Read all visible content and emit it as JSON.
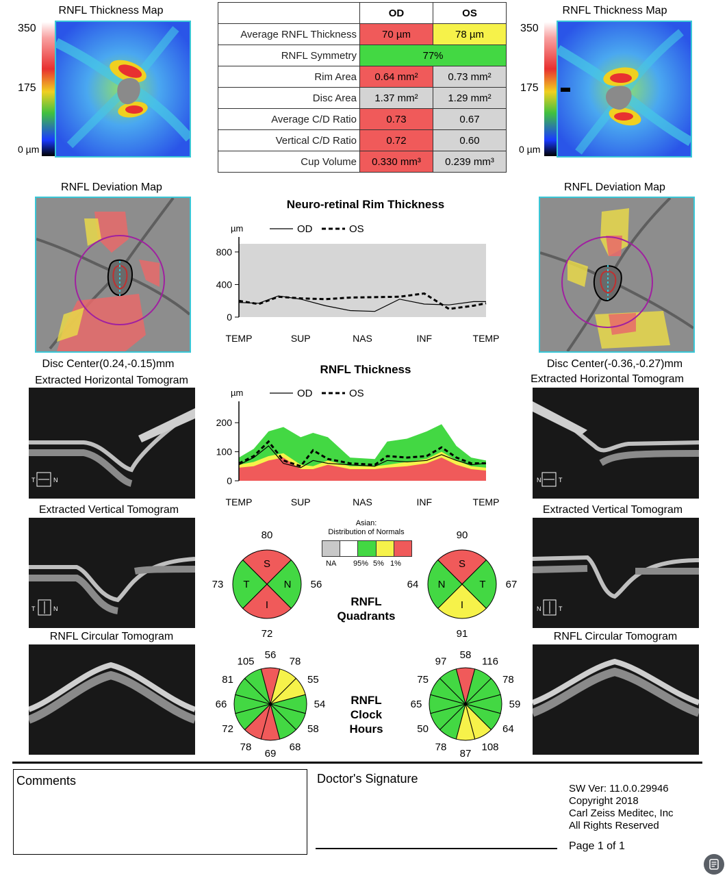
{
  "headers": {
    "thickness_map": "RNFL Thickness Map",
    "deviation_map": "RNFL Deviation Map",
    "horiz_tomo": "Extracted Horizontal Tomogram",
    "vert_tomo": "Extracted Vertical Tomogram",
    "circ_tomo": "RNFL Circular Tomogram"
  },
  "scale": {
    "top": "350",
    "mid": "175",
    "bottom": "0 µm"
  },
  "table": {
    "col_od": "OD",
    "col_os": "OS",
    "rows": [
      {
        "label": "Average RNFL Thickness",
        "od": "70 µm",
        "os": "78 µm"
      },
      {
        "label": "RNFL Symmetry",
        "both": "77%"
      },
      {
        "label": "Rim Area",
        "od": "0.64 mm²",
        "os": "0.73 mm²"
      },
      {
        "label": "Disc Area",
        "od": "1.37 mm²",
        "os": "1.29 mm²"
      },
      {
        "label": "Average C/D Ratio",
        "od": "0.73",
        "os": "0.67"
      },
      {
        "label": "Vertical C/D Ratio",
        "od": "0.72",
        "os": "0.60"
      },
      {
        "label": "Cup Volume",
        "od": "0.330 mm³",
        "os": "0.239 mm³"
      }
    ]
  },
  "disc_center": {
    "od": "Disc Center(0.24,-0.15)mm",
    "os": "Disc Center(-0.36,-0.27)mm"
  },
  "tomo_markers": {
    "t": "T",
    "n": "N"
  },
  "chart_data": [
    {
      "type": "line",
      "title": "Neuro-retinal Rim Thickness",
      "ylabel": "µm",
      "ylim": [
        0,
        900
      ],
      "yticks": [
        0,
        400,
        800
      ],
      "categories": [
        "TEMP",
        "SUP",
        "NAS",
        "INF",
        "TEMP"
      ],
      "series": [
        {
          "name": "OD",
          "style": "solid",
          "x": [
            0,
            8,
            16,
            25,
            35,
            45,
            55,
            65,
            75,
            85,
            95,
            100
          ],
          "values": [
            180,
            170,
            260,
            220,
            140,
            80,
            70,
            220,
            160,
            150,
            190,
            190
          ]
        },
        {
          "name": "OS",
          "style": "dashed",
          "x": [
            0,
            8,
            16,
            25,
            35,
            45,
            55,
            65,
            75,
            85,
            95,
            100
          ],
          "values": [
            200,
            160,
            250,
            230,
            220,
            240,
            245,
            250,
            290,
            100,
            140,
            170
          ]
        }
      ]
    },
    {
      "type": "area",
      "title": "RNFL Thickness",
      "ylabel": "µm",
      "ylim": [
        0,
        250
      ],
      "yticks": [
        0,
        100,
        200
      ],
      "categories": [
        "TEMP",
        "SUP",
        "NAS",
        "INF",
        "TEMP"
      ],
      "normal_bands": {
        "colors": [
          "#f05a5a",
          "#f6f24a",
          "#43d843"
        ],
        "x": [
          0,
          6,
          12,
          18,
          25,
          30,
          36,
          45,
          55,
          60,
          68,
          76,
          82,
          88,
          94,
          100
        ],
        "p1": [
          45,
          50,
          70,
          80,
          40,
          40,
          55,
          40,
          40,
          45,
          50,
          60,
          80,
          55,
          40,
          35
        ],
        "p5": [
          55,
          65,
          85,
          95,
          55,
          50,
          70,
          50,
          50,
          55,
          65,
          75,
          100,
          70,
          50,
          45
        ],
        "p95": [
          80,
          110,
          170,
          185,
          150,
          165,
          150,
          80,
          75,
          135,
          145,
          170,
          195,
          120,
          80,
          70
        ]
      },
      "series": [
        {
          "name": "OD",
          "style": "solid",
          "x": [
            0,
            6,
            12,
            18,
            25,
            30,
            36,
            45,
            55,
            60,
            68,
            76,
            82,
            88,
            94,
            100
          ],
          "values": [
            55,
            80,
            120,
            60,
            45,
            70,
            60,
            55,
            50,
            70,
            65,
            70,
            90,
            70,
            55,
            60
          ]
        },
        {
          "name": "OS",
          "style": "dashed",
          "x": [
            0,
            6,
            12,
            18,
            25,
            30,
            36,
            45,
            55,
            60,
            68,
            76,
            82,
            88,
            94,
            100
          ],
          "values": [
            60,
            85,
            135,
            70,
            50,
            105,
            75,
            60,
            55,
            85,
            80,
            85,
            115,
            80,
            60,
            60
          ]
        }
      ]
    }
  ],
  "legend": {
    "region": "Asian:",
    "title": "Distribution of Normals",
    "labels": [
      "NA",
      "95%",
      "5%",
      "1%"
    ],
    "colors": [
      "#c8c8c8",
      "#ffffff",
      "#43d843",
      "#f6f24a",
      "#f05a5a"
    ]
  },
  "quadrants": {
    "label_line1": "RNFL",
    "label_line2": "Quadrants",
    "od": {
      "S": "80",
      "T": "73",
      "N": "56",
      "I": "72",
      "colors": {
        "S": "#f05a5a",
        "T": "#43d843",
        "N": "#43d843",
        "I": "#f05a5a"
      }
    },
    "os": {
      "S": "90",
      "N": "64",
      "T": "67",
      "I": "91",
      "colors": {
        "S": "#f05a5a",
        "N": "#43d843",
        "T": "#43d843",
        "I": "#f6f24a"
      }
    }
  },
  "clock_hours": {
    "label_line1": "RNFL",
    "label_line2": "Clock",
    "label_line3": "Hours",
    "od": {
      "values": [
        "56",
        "78",
        "55",
        "54",
        "58",
        "68",
        "69",
        "78",
        "72",
        "66",
        "81",
        "105"
      ],
      "colors": [
        "#f05a5a",
        "#f6f24a",
        "#f6f24a",
        "#43d843",
        "#43d843",
        "#43d843",
        "#f05a5a",
        "#f05a5a",
        "#43d843",
        "#43d843",
        "#43d843",
        "#43d843"
      ]
    },
    "os": {
      "values": [
        "58",
        "116",
        "78",
        "59",
        "64",
        "108",
        "87",
        "78",
        "50",
        "65",
        "75",
        "97"
      ],
      "colors": [
        "#f05a5a",
        "#43d843",
        "#43d843",
        "#43d843",
        "#43d843",
        "#f6f24a",
        "#f6f24a",
        "#43d843",
        "#43d843",
        "#43d843",
        "#43d843",
        "#43d843"
      ]
    }
  },
  "footer": {
    "comments": "Comments",
    "signature": "Doctor's Signature",
    "sw_ver": "SW Ver: 11.0.0.29946",
    "copyright": "Copyright 2018",
    "company": "Carl Zeiss Meditec, Inc",
    "rights": "All Rights Reserved",
    "page": "Page 1 of 1"
  }
}
